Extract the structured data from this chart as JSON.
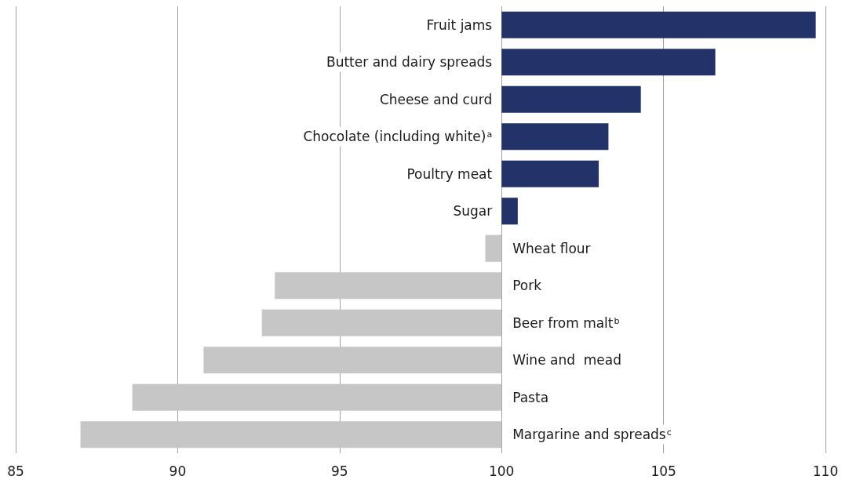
{
  "chart_data": {
    "type": "bar",
    "orientation": "horizontal",
    "categories": [
      "Fruit jams",
      "Butter and dairy spreads",
      "Cheese and curd",
      "Chocolate (including white)$^{a}$",
      "Poultry meat",
      "Sugar",
      "Wheat flour",
      "Pork",
      "Beer from malt$^{b}$",
      "Wine and  mead",
      "Pasta",
      "Margarine and spreads$^{c}$"
    ],
    "base": [
      100,
      100,
      100,
      100,
      100,
      100,
      100,
      100,
      100,
      100,
      100,
      100
    ],
    "values": [
      9.7,
      6.6,
      4.3,
      3.3,
      3.0,
      0.5,
      -0.5,
      -7.0,
      -7.4,
      -9.2,
      -11.4,
      -13.0
    ],
    "colors": [
      "#233269",
      "#233269",
      "#233269",
      "#233269",
      "#233269",
      "#233269",
      "#c6c6c6",
      "#c6c6c6",
      "#c6c6c6",
      "#c6c6c6",
      "#c6c6c6",
      "#c6c6c6"
    ],
    "xlim": [
      85,
      110
    ],
    "xticks": [
      85,
      90,
      95,
      100,
      105,
      110
    ],
    "grid": "x"
  }
}
